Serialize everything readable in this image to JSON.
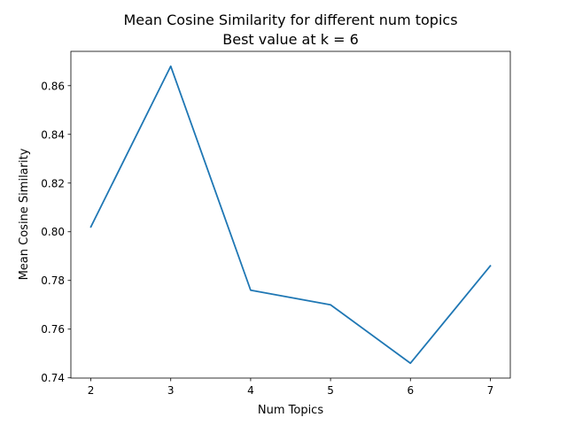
{
  "chart_data": {
    "type": "line",
    "title": "Mean Cosine Similarity for different num topics",
    "subtitle": "Best value at k = 6",
    "xlabel": "Num Topics",
    "ylabel": "Mean Cosine Similarity",
    "x": [
      2,
      3,
      4,
      5,
      6,
      7
    ],
    "series": [
      {
        "values": [
          0.802,
          0.868,
          0.776,
          0.77,
          0.746,
          0.786
        ]
      }
    ],
    "xticks": [
      "2",
      "3",
      "4",
      "5",
      "6",
      "7"
    ],
    "yticks": [
      "0.74",
      "0.76",
      "0.78",
      "0.80",
      "0.82",
      "0.84",
      "0.86"
    ],
    "xlim": [
      1.75,
      7.25
    ],
    "ylim": [
      0.7399,
      0.8741
    ],
    "grid": false,
    "line_color": "#1f77b4"
  }
}
